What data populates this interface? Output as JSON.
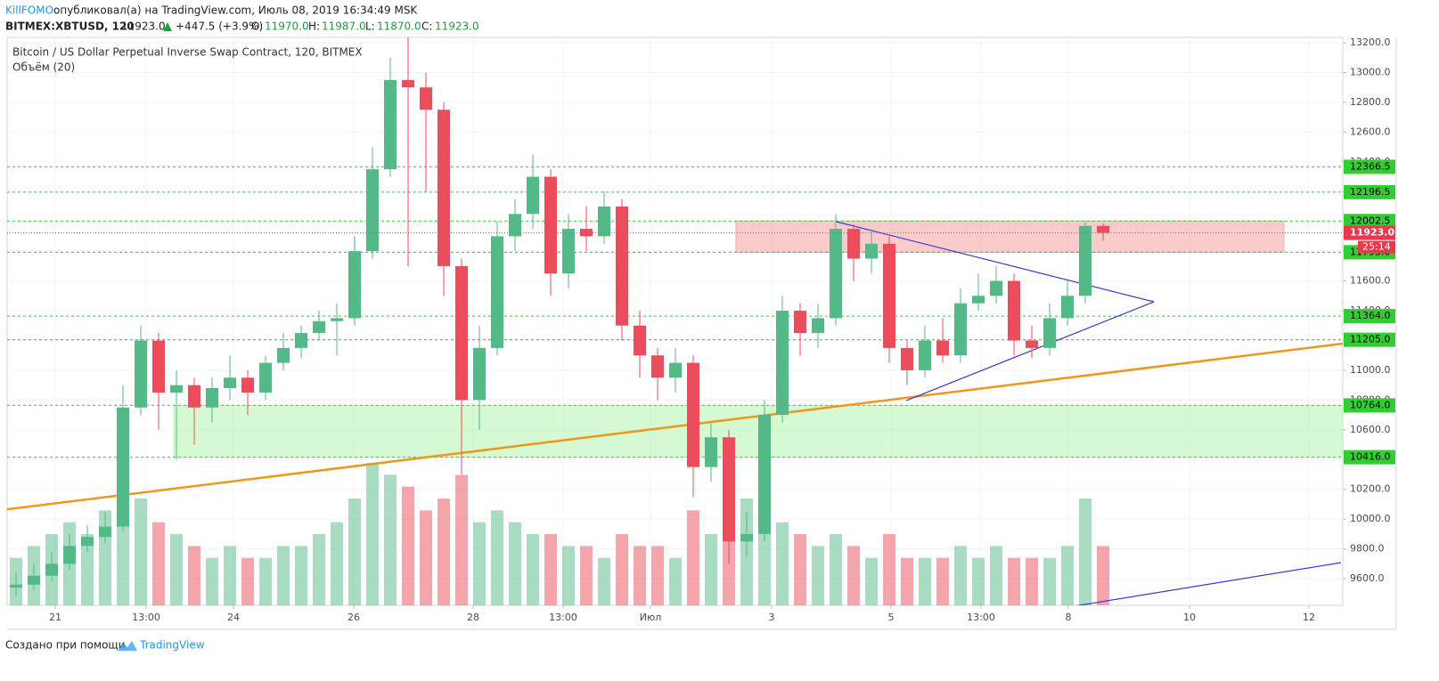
{
  "header": {
    "publisher": "KillFOMO",
    "published_text": "опубликовал(а) на TradingView.com, Июль 08, 2019 16:34:49 MSK",
    "symbol": "BITMEX:XBTUSD, 120",
    "last": "11923.0",
    "change": "+447.5 (+3.9%)",
    "ohlc": [
      {
        "label": "O:",
        "value": "11970.0"
      },
      {
        "label": "H:",
        "value": "11987.0"
      },
      {
        "label": "L:",
        "value": "11870.0"
      },
      {
        "label": "C:",
        "value": "11923.0"
      }
    ]
  },
  "chart_data": {
    "type": "candlestick",
    "title": "Bitcoin / US Dollar Perpetual Inverse Swap Contract, 120, BITMEX",
    "subtitle": "Объём (20)",
    "up_color": "#53b987",
    "down_color": "#eb4d5c",
    "open": [
      9540,
      9560,
      9620,
      9700,
      9820,
      9880,
      9950,
      10750,
      11200,
      10850,
      10900,
      10750,
      10880,
      10950,
      10850,
      11050,
      11150,
      11250,
      11330,
      11350,
      11800,
      12350,
      12950,
      12900,
      12750,
      11700,
      10800,
      11150,
      11900,
      12050,
      12300,
      11650,
      11950,
      11900,
      12100,
      11300,
      11100,
      10950,
      11050,
      10350,
      10550,
      9850,
      9900,
      10700,
      11400,
      11250,
      11350,
      11950,
      11750,
      11850,
      11150,
      11000,
      11200,
      11100,
      11450,
      11500,
      11600,
      11200,
      11150,
      11350,
      11500,
      11970
    ],
    "high": [
      9640,
      9700,
      9780,
      9900,
      9960,
      10050,
      10900,
      11300,
      11250,
      11000,
      10950,
      10950,
      11100,
      11000,
      11100,
      11250,
      11300,
      11400,
      11450,
      11900,
      12500,
      13100,
      13250,
      13000,
      12800,
      11750,
      11300,
      12000,
      12150,
      12450,
      12350,
      12050,
      12100,
      12200,
      12150,
      11400,
      11150,
      11150,
      11100,
      10650,
      10600,
      10050,
      10800,
      11500,
      11450,
      11450,
      12050,
      11980,
      11950,
      11900,
      11200,
      11300,
      11350,
      11550,
      11650,
      11700,
      11650,
      11300,
      11450,
      11600,
      12000,
      11987
    ],
    "low": [
      9480,
      9520,
      9580,
      9660,
      9780,
      9840,
      9920,
      10700,
      10600,
      10400,
      10500,
      10650,
      10800,
      10700,
      10800,
      11000,
      11080,
      11200,
      11100,
      11300,
      11750,
      12300,
      11700,
      12200,
      11500,
      10300,
      10600,
      11100,
      11800,
      11950,
      11500,
      11550,
      11800,
      11850,
      11200,
      10950,
      10800,
      10850,
      10150,
      10250,
      9700,
      9750,
      9850,
      10650,
      11100,
      11150,
      11300,
      11600,
      11650,
      11050,
      10900,
      10950,
      11050,
      11050,
      11400,
      11450,
      11100,
      11080,
      11100,
      11300,
      11450,
      11870
    ],
    "close": [
      9560,
      9620,
      9700,
      9820,
      9880,
      9950,
      10750,
      11200,
      10850,
      10900,
      10750,
      10880,
      10950,
      10850,
      11050,
      11150,
      11250,
      11330,
      11350,
      11800,
      12350,
      12950,
      12900,
      12750,
      11700,
      10800,
      11150,
      11900,
      12050,
      12300,
      11650,
      11950,
      11900,
      12100,
      11300,
      11100,
      10950,
      11050,
      10350,
      10550,
      9850,
      9900,
      10700,
      11400,
      11250,
      11350,
      11950,
      11750,
      11850,
      11150,
      11000,
      11200,
      11100,
      11450,
      11500,
      11600,
      11200,
      11150,
      11350,
      11500,
      11970,
      11923
    ],
    "volume": [
      20,
      25,
      30,
      35,
      30,
      40,
      60,
      45,
      35,
      30,
      25,
      20,
      25,
      20,
      20,
      25,
      25,
      30,
      35,
      45,
      60,
      55,
      50,
      40,
      45,
      55,
      35,
      40,
      35,
      30,
      30,
      25,
      25,
      20,
      30,
      25,
      25,
      20,
      40,
      30,
      55,
      45,
      40,
      35,
      30,
      25,
      30,
      25,
      20,
      30,
      20,
      20,
      20,
      25,
      20,
      25,
      20,
      20,
      20,
      25,
      45,
      25
    ],
    "xlim": [
      -0.5,
      74.45
    ],
    "xticks": [
      {
        "value": 2.2,
        "label": "21"
      },
      {
        "value": 7.3,
        "label": "13:00"
      },
      {
        "value": 12.2,
        "label": "24"
      },
      {
        "value": 18.95,
        "label": "26"
      },
      {
        "value": 25.65,
        "label": "28"
      },
      {
        "value": 30.7,
        "label": "13:00"
      },
      {
        "value": 35.6,
        "label": "Июл"
      },
      {
        "value": 42.4,
        "label": "3"
      },
      {
        "value": 49.1,
        "label": "5"
      },
      {
        "value": 54.15,
        "label": "13:00"
      },
      {
        "value": 59.05,
        "label": "8"
      },
      {
        "value": 65.85,
        "label": "10"
      },
      {
        "value": 72.55,
        "label": "12"
      }
    ],
    "ylim": [
      9421,
      13236
    ],
    "yticks": [
      {
        "value": 9600,
        "label": "9600.0"
      },
      {
        "value": 9800,
        "label": "9800.0"
      },
      {
        "value": 10000,
        "label": "10000.0"
      },
      {
        "value": 10200,
        "label": "10200.0"
      },
      {
        "value": 10400,
        "label": "10400.0"
      },
      {
        "value": 10600,
        "label": "10600.0"
      },
      {
        "value": 10800,
        "label": "10800.0"
      },
      {
        "value": 11000,
        "label": "11000.0"
      },
      {
        "value": 11200,
        "label": "11200.0"
      },
      {
        "value": 11400,
        "label": "11400.0"
      },
      {
        "value": 11600,
        "label": "11600.0"
      },
      {
        "value": 11800,
        "label": "11800.0"
      },
      {
        "value": 12000,
        "label": "12000.0"
      },
      {
        "value": 12200,
        "label": "12200.0"
      },
      {
        "value": 12400,
        "label": "12400.0"
      },
      {
        "value": 12600,
        "label": "12600.0"
      },
      {
        "value": 12800,
        "label": "12800.0"
      },
      {
        "value": 13000,
        "label": "13000.0"
      },
      {
        "value": 13200,
        "label": "13200.0"
      }
    ],
    "grid": true,
    "level_color": "#33cc33",
    "levels": [
      12366.5,
      12196.5,
      12002.5,
      {
        "value": 11793,
        "label": "11793.0"
      },
      {
        "value": 11364,
        "label": "11364.0"
      },
      {
        "value": 11205,
        "label": "11205.0"
      },
      {
        "value": 10764,
        "label": "10764.0"
      },
      {
        "value": 10416,
        "label": "10416.0"
      }
    ],
    "last_price": {
      "value": 11923,
      "label": "11923.0"
    },
    "countdown": "25:14",
    "zones": [
      {
        "xlim": [
          40.4,
          71.15
        ],
        "ylim": [
          11793,
          12002.5
        ],
        "color": "#f7a8a8"
      },
      {
        "xlim": [
          8.85,
          74.45
        ],
        "ylim": [
          10416,
          10764
        ],
        "color": "#b9f5b0"
      }
    ],
    "trendlines": [
      {
        "x": [
          -0.5,
          74.45
        ],
        "y": [
          10066,
          11179
        ],
        "color": "#f0961c"
      },
      {
        "x": [
          46,
          63.85
        ],
        "y": [
          11999,
          11460
        ],
        "color": "#3a3ad6"
      },
      {
        "x": [
          49.95,
          63.85
        ],
        "y": [
          10796,
          11460
        ],
        "color": "#3a3ad6"
      },
      {
        "x": [
          59.05,
          74.35
        ],
        "y": [
          9409,
          9708
        ],
        "color": "#3a3ad6"
      }
    ]
  },
  "footer": {
    "text": "Создано при помощи",
    "brand": "TradingView"
  }
}
